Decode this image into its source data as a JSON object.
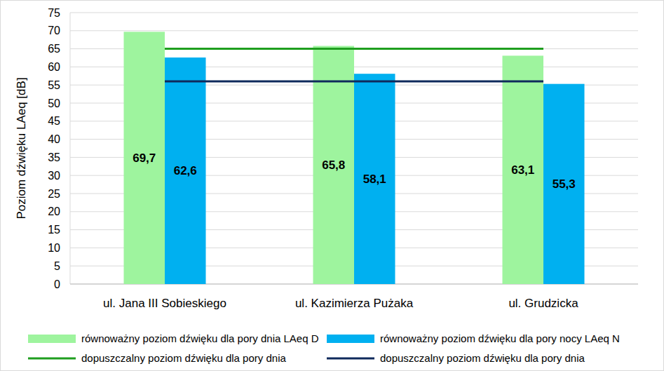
{
  "chart_data": {
    "type": "bar",
    "y_label": "Poziom dźwięku LAeq [dB]",
    "categories": [
      "ul. Jana III Sobieskiego",
      "ul. Kazimierza Pużaka",
      "ul. Grudzicka"
    ],
    "series": [
      {
        "name": "równoważny poziom dźwięku dla pory dnia LAeq D",
        "type": "bar",
        "color": "#9EF49E",
        "values": [
          69.7,
          65.8,
          63.1
        ],
        "value_labels": [
          "69,7",
          "65,8",
          "63,1"
        ]
      },
      {
        "name": "równoważny poziom dźwięku dla pory nocy LAeq N",
        "type": "bar",
        "color": "#00B0F0",
        "values": [
          62.6,
          58.1,
          55.3
        ],
        "value_labels": [
          "62,6",
          "58,1",
          "55,3"
        ]
      },
      {
        "name": "dopuszczalny poziom dźwięku dla pory dnia",
        "type": "line",
        "color": "#1F9E1F",
        "values": [
          65,
          65,
          65
        ]
      },
      {
        "name": "dopuszczalny poziom dźwięku dla pory dnia",
        "type": "line",
        "color": "#0F2A5C",
        "values": [
          56,
          56,
          56
        ]
      }
    ],
    "ylim": [
      0,
      75
    ],
    "yticks": [
      0,
      5,
      10,
      15,
      20,
      25,
      30,
      35,
      40,
      45,
      50,
      55,
      60,
      65,
      70,
      75
    ],
    "grid": true,
    "legend": "bottom",
    "data_labels": true
  }
}
